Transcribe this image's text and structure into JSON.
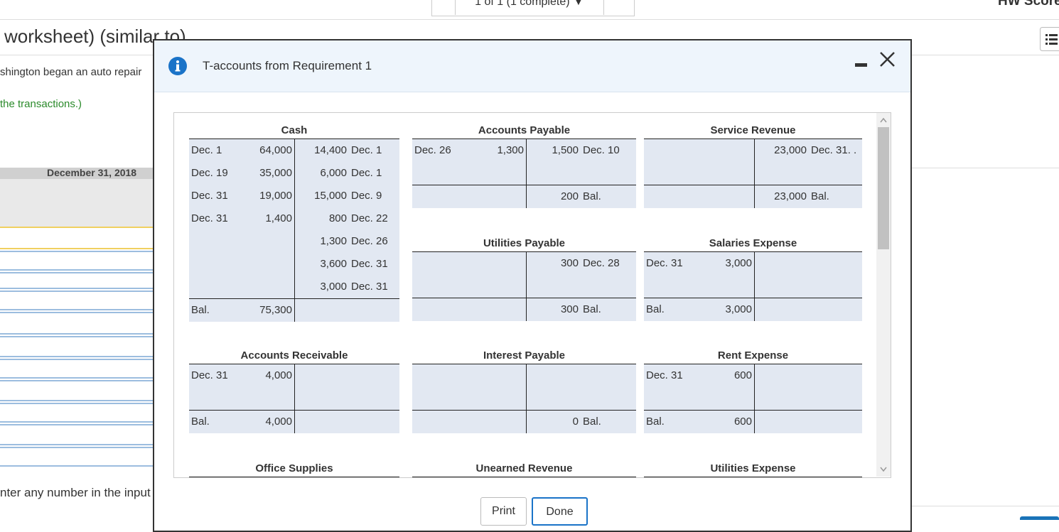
{
  "background": {
    "pagination": "1 of 1 (1 complete)",
    "score": "HW Score",
    "heading": "worksheet) (similar to)",
    "intro": "shington began an auto repair",
    "hint": "the transactions.)",
    "date_header": "December 31, 2018",
    "footer_note": "nter any number in the input"
  },
  "dialog": {
    "title": "T-accounts from Requirement 1",
    "accounts": [
      {
        "title": "Cash",
        "debits": [
          {
            "date": "Dec. 1",
            "amount": "64,000"
          },
          {
            "date": "Dec. 19",
            "amount": "35,000"
          },
          {
            "date": "Dec. 31",
            "amount": "19,000"
          },
          {
            "date": "Dec. 31",
            "amount": "1,400"
          }
        ],
        "credits": [
          {
            "amount": "14,400",
            "date": "Dec. 1"
          },
          {
            "amount": "6,000",
            "date": "Dec. 1"
          },
          {
            "amount": "15,000",
            "date": "Dec. 9"
          },
          {
            "amount": "800",
            "date": "Dec. 22"
          },
          {
            "amount": "1,300",
            "date": "Dec. 26"
          },
          {
            "amount": "3,600",
            "date": "Dec. 31"
          },
          {
            "amount": "3,000",
            "date": "Dec. 31"
          }
        ],
        "balance": {
          "side": "debit",
          "label": "Bal.",
          "amount": "75,300"
        }
      },
      {
        "title": "Accounts Payable",
        "debits": [
          {
            "date": "Dec. 26",
            "amount": "1,300"
          }
        ],
        "credits": [
          {
            "amount": "1,500",
            "date": "Dec. 10"
          }
        ],
        "balance": {
          "side": "credit",
          "label": "Bal.",
          "amount": "200"
        }
      },
      {
        "title": "Service Revenue",
        "debits": [],
        "credits": [
          {
            "amount": "23,000",
            "date": "Dec. 31. ."
          }
        ],
        "balance": {
          "side": "credit",
          "label": "Bal.",
          "amount": "23,000"
        }
      },
      {
        "title": "Utilities Payable",
        "debits": [],
        "credits": [
          {
            "amount": "300",
            "date": "Dec. 28"
          }
        ],
        "balance": {
          "side": "credit",
          "label": "Bal.",
          "amount": "300"
        }
      },
      {
        "title": "Salaries Expense",
        "debits": [
          {
            "date": "Dec. 31",
            "amount": "3,000"
          }
        ],
        "credits": [],
        "balance": {
          "side": "debit",
          "label": "Bal.",
          "amount": "3,000"
        }
      },
      {
        "title": "Accounts Receivable",
        "debits": [
          {
            "date": "Dec. 31",
            "amount": "4,000"
          }
        ],
        "credits": [],
        "balance": {
          "side": "debit",
          "label": "Bal.",
          "amount": "4,000"
        }
      },
      {
        "title": "Interest Payable",
        "debits": [],
        "credits": [],
        "balance": {
          "side": "credit",
          "label": "Bal.",
          "amount": "0"
        }
      },
      {
        "title": "Rent Expense",
        "debits": [
          {
            "date": "Dec. 31",
            "amount": "600"
          }
        ],
        "credits": [],
        "balance": {
          "side": "debit",
          "label": "Bal.",
          "amount": "600"
        }
      },
      {
        "title": "Office Supplies",
        "debits": [],
        "credits": []
      },
      {
        "title": "Unearned Revenue",
        "debits": [],
        "credits": []
      },
      {
        "title": "Utilities Expense",
        "debits": [],
        "credits": []
      }
    ],
    "buttons": [
      "Print",
      "Done"
    ]
  }
}
